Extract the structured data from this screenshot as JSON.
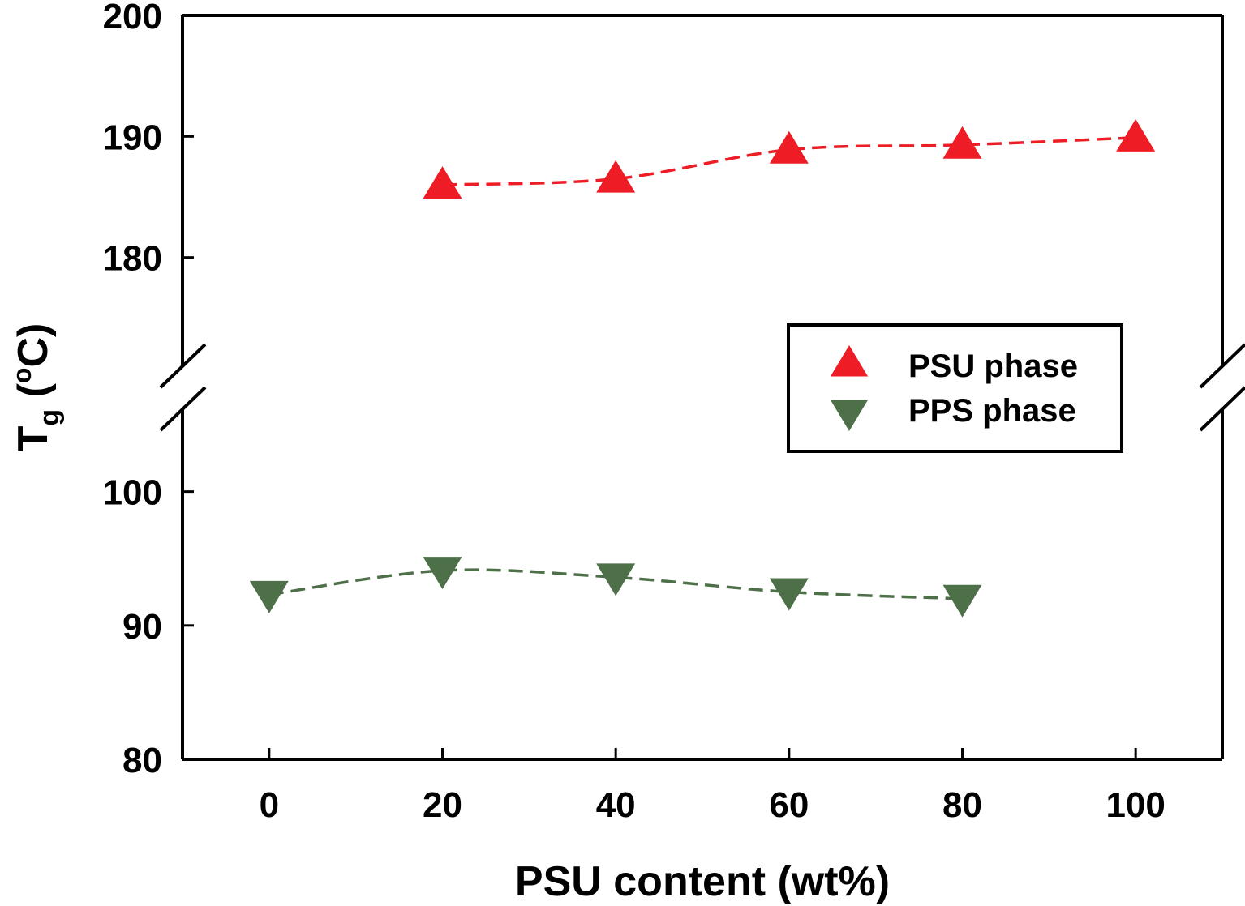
{
  "chart_data": {
    "type": "line",
    "xlabel": "PSU content (wt%)",
    "ylabel": {
      "main": "T",
      "subscript": "g",
      "unit_open": " (",
      "unit_sup": "o",
      "unit_rest": "C)"
    },
    "x_ticks": [
      "0",
      "20",
      "40",
      "60",
      "80",
      "100"
    ],
    "xlim": [
      -10,
      110
    ],
    "axis_break": true,
    "y_segments": [
      {
        "name": "upper",
        "range": [
          170,
          200
        ],
        "ticks": [
          "180",
          "190",
          "200"
        ]
      },
      {
        "name": "lower",
        "range": [
          80,
          107
        ],
        "ticks": [
          "80",
          "90",
          "100"
        ]
      }
    ],
    "series": [
      {
        "name": "PSU phase",
        "marker": "triangle-up",
        "color": "#ee1c24",
        "line_style": "dashed",
        "segment": "upper",
        "x": [
          20,
          40,
          60,
          80,
          100
        ],
        "y": [
          186.0,
          186.5,
          188.9,
          189.3,
          189.9
        ]
      },
      {
        "name": "PPS phase",
        "marker": "triangle-down",
        "color": "#4d7048",
        "line_style": "dashed",
        "segment": "lower",
        "x": [
          0,
          20,
          40,
          60,
          80
        ],
        "y": [
          92.3,
          94.1,
          93.6,
          92.5,
          92.0
        ]
      }
    ],
    "legend": {
      "placement": "center-right",
      "entries": [
        "PSU phase",
        "PPS phase"
      ]
    },
    "grid": false
  }
}
